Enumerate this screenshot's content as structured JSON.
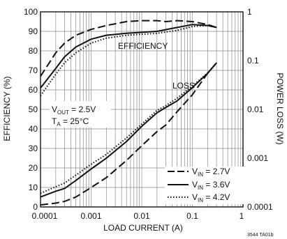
{
  "chart_data": {
    "type": "line",
    "x_scale": "log",
    "xlim": [
      0.0001,
      1
    ],
    "ylim_left": [
      0,
      100
    ],
    "ylim_right": [
      0.0001,
      1
    ],
    "y_right_scale": "log",
    "grid": true,
    "legend_position": "bottom-right",
    "xlabel": "LOAD CURRENT (A)",
    "ylabel_left": "EFFICIENCY (%)",
    "ylabel_right": "POWER LOSS (W)",
    "x_ticks": [
      "0.0001",
      "0.001",
      "0.01",
      "0.1",
      "1"
    ],
    "y_left_ticks": [
      "0",
      "10",
      "20",
      "30",
      "40",
      "50",
      "60",
      "70",
      "80",
      "90",
      "100"
    ],
    "y_right_ticks": [
      "0.0001",
      "0.001",
      "0.01",
      "0.1",
      "1"
    ],
    "annotations": {
      "efficiency": "EFFICIENCY",
      "loss": "LOSS",
      "vout": "V",
      "vout_sub": "OUT",
      "vout_val": " = 2.5V",
      "ta": "T",
      "ta_sub": "A",
      "ta_val": " = 25°C",
      "code": "3544 TA01b"
    },
    "series": [
      {
        "name": "VIN = 2.7V",
        "legend_main": "V",
        "legend_sub": "IN",
        "legend_val": " = 2.7V",
        "style": "dashed",
        "efficiency": {
          "x": [
            0.0001,
            0.00015,
            0.0002,
            0.0003,
            0.0005,
            0.001,
            0.002,
            0.005,
            0.01,
            0.02,
            0.03,
            0.05,
            0.1,
            0.2,
            0.3
          ],
          "y": [
            67,
            74,
            79,
            84,
            88,
            91,
            93,
            95,
            95.5,
            95.5,
            95,
            95.5,
            95,
            93.5,
            92
          ]
        },
        "loss": {
          "x": [
            0.0001,
            0.0002,
            0.0003,
            0.0005,
            0.001,
            0.002,
            0.005,
            0.01,
            0.02,
            0.03,
            0.05,
            0.1,
            0.2,
            0.3
          ],
          "y": [
            0.00011,
            0.00012,
            0.00013,
            0.00016,
            0.00025,
            0.0004,
            0.0009,
            0.0018,
            0.0035,
            0.0048,
            0.009,
            0.02,
            0.055,
            0.09
          ]
        }
      },
      {
        "name": "VIN = 3.6V",
        "legend_main": "V",
        "legend_sub": "IN",
        "legend_val": " = 3.6V",
        "style": "solid",
        "efficiency": {
          "x": [
            0.0001,
            0.0002,
            0.0003,
            0.0005,
            0.001,
            0.002,
            0.005,
            0.01,
            0.02,
            0.05,
            0.1,
            0.2,
            0.3
          ],
          "y": [
            61,
            71,
            77,
            82,
            86,
            88,
            89,
            89.5,
            90,
            92,
            93.5,
            93,
            92
          ]
        },
        "loss": {
          "x": [
            0.0001,
            0.0002,
            0.0003,
            0.0005,
            0.001,
            0.002,
            0.005,
            0.01,
            0.02,
            0.03,
            0.05,
            0.1,
            0.2,
            0.3
          ],
          "y": [
            0.00016,
            0.00021,
            0.00024,
            0.00035,
            0.0006,
            0.001,
            0.0022,
            0.0045,
            0.0085,
            0.011,
            0.015,
            0.028,
            0.055,
            0.09
          ]
        }
      },
      {
        "name": "VIN = 4.2V",
        "legend_main": "V",
        "legend_sub": "IN",
        "legend_val": " = 4.2V",
        "style": "dotted",
        "efficiency": {
          "x": [
            0.0001,
            0.0002,
            0.0003,
            0.0005,
            0.001,
            0.002,
            0.005,
            0.01,
            0.02,
            0.05,
            0.1,
            0.2,
            0.3
          ],
          "y": [
            57,
            68,
            74,
            79,
            84,
            86.5,
            88,
            88.5,
            89,
            90.5,
            92.5,
            93,
            92
          ]
        },
        "loss": {
          "x": [
            0.0001,
            0.0002,
            0.0003,
            0.0005,
            0.001,
            0.002,
            0.005,
            0.01,
            0.02,
            0.03,
            0.05,
            0.1,
            0.2,
            0.3
          ],
          "y": [
            0.00019,
            0.00026,
            0.00031,
            0.00045,
            0.00075,
            0.0012,
            0.0026,
            0.005,
            0.0095,
            0.012,
            0.017,
            0.03,
            0.056,
            0.09
          ]
        }
      }
    ]
  }
}
